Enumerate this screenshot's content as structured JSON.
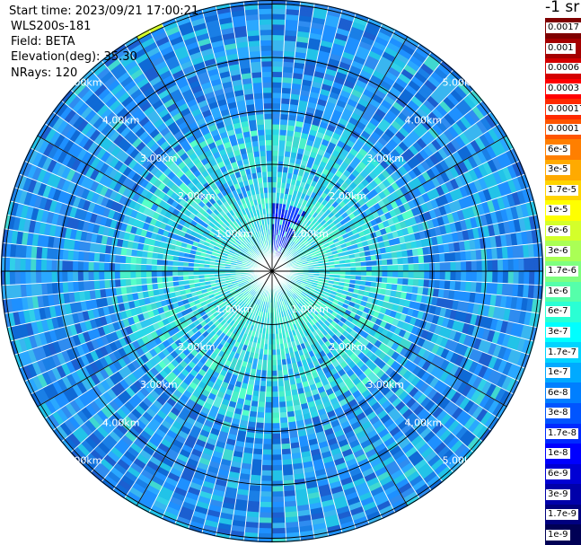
{
  "header": {
    "start_time": "Start time: 2023/09/21 17:00:21",
    "instrument": "WLS200s-181",
    "field": "Field: BETA",
    "elevation": "Elevation(deg): 35.30",
    "nrays": "NRays: 120"
  },
  "colorbar": {
    "units": "-1 sr",
    "labels": [
      "0.0017",
      "0.001",
      "0.0006",
      "0.0003",
      "0.00017",
      "0.0001",
      "6e-5",
      "3e-5",
      "1.7e-5",
      "1e-5",
      "6e-6",
      "3e-6",
      "1.7e-6",
      "1e-6",
      "6e-7",
      "3e-7",
      "1.7e-7",
      "1e-7",
      "6e-8",
      "3e-8",
      "1.7e-8",
      "1e-8",
      "6e-9",
      "3e-9",
      "1.7e-9",
      "1e-9"
    ],
    "colors": [
      "#7f0000",
      "#a50000",
      "#d40000",
      "#ff0000",
      "#ff2a00",
      "#ff5500",
      "#ff7f00",
      "#ffaa00",
      "#ffd400",
      "#ffff00",
      "#d4ff2a",
      "#aaff55",
      "#7fff7f",
      "#55ffaa",
      "#2affd4",
      "#00ffff",
      "#00d4ff",
      "#00aaff",
      "#007fff",
      "#0055ff",
      "#002aff",
      "#0000ff",
      "#0000d4",
      "#0000aa",
      "#00007f",
      "#000055"
    ]
  },
  "chart_data": {
    "type": "heatmap",
    "projection": "polar PPI scan",
    "field": "BETA",
    "nrays": 120,
    "elevation_deg": 35.3,
    "range_rings_km": [
      1,
      2,
      3,
      4,
      5
    ],
    "range_labels": [
      "1.00km",
      "2.00km",
      "3.00km",
      "4.00km",
      "5.00km"
    ],
    "max_range_km": 5.9,
    "value_regions": [
      {
        "region": "near range 0-1.5 km",
        "value_approx": "1e-7"
      },
      {
        "region": "north-northeast sector 0-1.2 km",
        "value_approx": "1e-9"
      },
      {
        "region": "mid range 1.5-3 km",
        "value_approx": "3e-8"
      },
      {
        "region": "far range 3-5.9 km",
        "value_approx": "6e-8"
      },
      {
        "region": "north-northwest near 5.2 km",
        "value_approx": "1e-5"
      }
    ],
    "grid": true
  },
  "rings": {
    "labels": [
      "1.00km",
      "2.00km",
      "3.00km",
      "4.00km",
      "5.00km"
    ]
  }
}
